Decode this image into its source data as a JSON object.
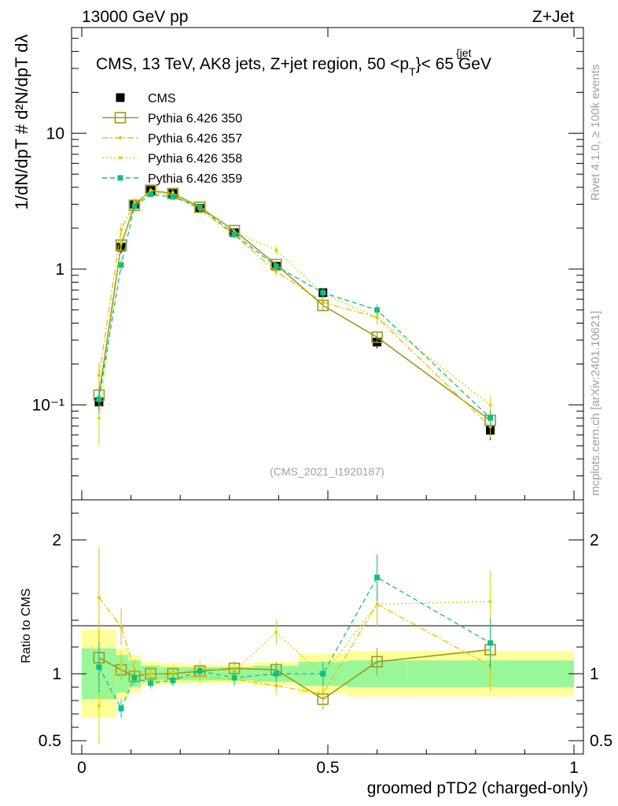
{
  "header": {
    "left": "13000 GeV pp",
    "right": "Z+Jet"
  },
  "plot_title": {
    "main": "CMS, 13 TeV, AK8 jets, Z+jet region, 50 <p",
    "sup": "{jet",
    "sub": "T",
    "tail": "}< 65 GeV"
  },
  "ylabel_top": "1/dN/dpT # d²N/dpT dλ",
  "ylabel_ratio": "Ratio to CMS",
  "xlabel": "groomed pTD2 (charged-only)",
  "side_top": "Rivet 4.1.0, ≥ 100k events",
  "side_bottom": "mcplots.cern.ch [arXiv:2401.10621]",
  "analysis_id": "(CMS_2021_I1920187)",
  "colors": {
    "cms": "#000000",
    "p350": "#9a9a20",
    "p357": "#e6c000",
    "p358": "#d4d400",
    "p359": "#10c080",
    "band_inner": "#99f799",
    "band_outer": "#ffff99"
  },
  "chart_data": {
    "type": "line",
    "xlim": [
      0,
      1
    ],
    "xticks": [
      "0",
      "0.5",
      "1"
    ],
    "ylim_top": [
      0.02,
      60
    ],
    "yscale_top": "log",
    "yticks_top": [
      "10⁻¹",
      "1",
      "10"
    ],
    "ylim_ratio": [
      0.4,
      2.3
    ],
    "yticks_ratio": [
      "0.5",
      "1",
      "2"
    ],
    "x": [
      0.035,
      0.08,
      0.107,
      0.14,
      0.185,
      0.24,
      0.31,
      0.395,
      0.49,
      0.6,
      0.83
    ],
    "bins": [
      [
        0,
        0.07
      ],
      [
        0.07,
        0.095
      ],
      [
        0.095,
        0.12
      ],
      [
        0.12,
        0.16
      ],
      [
        0.16,
        0.21
      ],
      [
        0.21,
        0.27
      ],
      [
        0.27,
        0.35
      ],
      [
        0.35,
        0.44
      ],
      [
        0.44,
        0.54
      ],
      [
        0.54,
        0.66
      ],
      [
        0.66,
        1.0
      ]
    ],
    "band_inner_half": [
      0.19,
      0.14,
      0.1,
      0.06,
      0.05,
      0.05,
      0.05,
      0.06,
      0.09,
      0.1,
      0.1
    ],
    "band_outer_half": [
      0.33,
      0.19,
      0.14,
      0.09,
      0.08,
      0.07,
      0.07,
      0.09,
      0.15,
      0.17,
      0.17
    ],
    "legend": [
      "CMS",
      "Pythia 6.426 350",
      "Pythia 6.426 357",
      "Pythia 6.426 358",
      "Pythia 6.426 359"
    ],
    "series": [
      {
        "name": "CMS",
        "values": [
          0.105,
          1.45,
          3.0,
          3.8,
          3.6,
          2.8,
          1.85,
          1.05,
          0.67,
          0.29,
          0.065
        ],
        "errors": [
          0.02,
          0.15,
          0.2,
          0.2,
          0.2,
          0.15,
          0.1,
          0.08,
          0.06,
          0.03,
          0.01
        ]
      },
      {
        "name": "Pythia 6.426 350",
        "values": [
          0.118,
          1.5,
          2.95,
          3.8,
          3.6,
          2.85,
          1.92,
          1.08,
          0.54,
          0.315,
          0.077
        ],
        "errors": [
          0.03,
          0.1,
          0.15,
          0.15,
          0.15,
          0.1,
          0.1,
          0.06,
          0.05,
          0.03,
          0.01
        ],
        "ratio": [
          1.12,
          1.03,
          0.98,
          1.0,
          1.0,
          1.02,
          1.04,
          1.03,
          0.81,
          1.09,
          1.18
        ]
      },
      {
        "name": "Pythia 6.426 357",
        "values": [
          0.165,
          1.95,
          3.1,
          3.7,
          3.5,
          2.75,
          1.78,
          0.96,
          0.57,
          0.44,
          0.069
        ],
        "errors": [
          0.04,
          0.2,
          0.25,
          0.2,
          0.2,
          0.15,
          0.1,
          0.07,
          0.06,
          0.05,
          0.012
        ],
        "ratio": [
          1.57,
          1.35,
          1.03,
          0.97,
          0.97,
          0.98,
          0.96,
          0.91,
          0.85,
          1.52,
          1.06
        ]
      },
      {
        "name": "Pythia 6.426 358",
        "values": [
          0.08,
          1.55,
          3.0,
          3.8,
          3.65,
          2.9,
          1.88,
          1.38,
          0.66,
          0.44,
          0.1
        ],
        "errors": [
          0.03,
          0.15,
          0.2,
          0.2,
          0.2,
          0.15,
          0.1,
          0.1,
          0.07,
          0.05,
          0.015
        ],
        "ratio": [
          0.76,
          1.07,
          1.0,
          1.0,
          1.01,
          1.04,
          1.02,
          1.31,
          0.99,
          1.52,
          1.54
        ]
      },
      {
        "name": "Pythia 6.426 359",
        "values": [
          0.11,
          1.07,
          2.9,
          3.55,
          3.4,
          2.85,
          1.8,
          1.05,
          0.67,
          0.5,
          0.08
        ],
        "errors": [
          0.02,
          0.1,
          0.15,
          0.15,
          0.15,
          0.1,
          0.1,
          0.07,
          0.06,
          0.05,
          0.012
        ],
        "ratio": [
          1.05,
          0.74,
          0.97,
          0.93,
          0.95,
          1.02,
          0.97,
          1.0,
          1.0,
          1.72,
          1.23
        ]
      }
    ]
  }
}
